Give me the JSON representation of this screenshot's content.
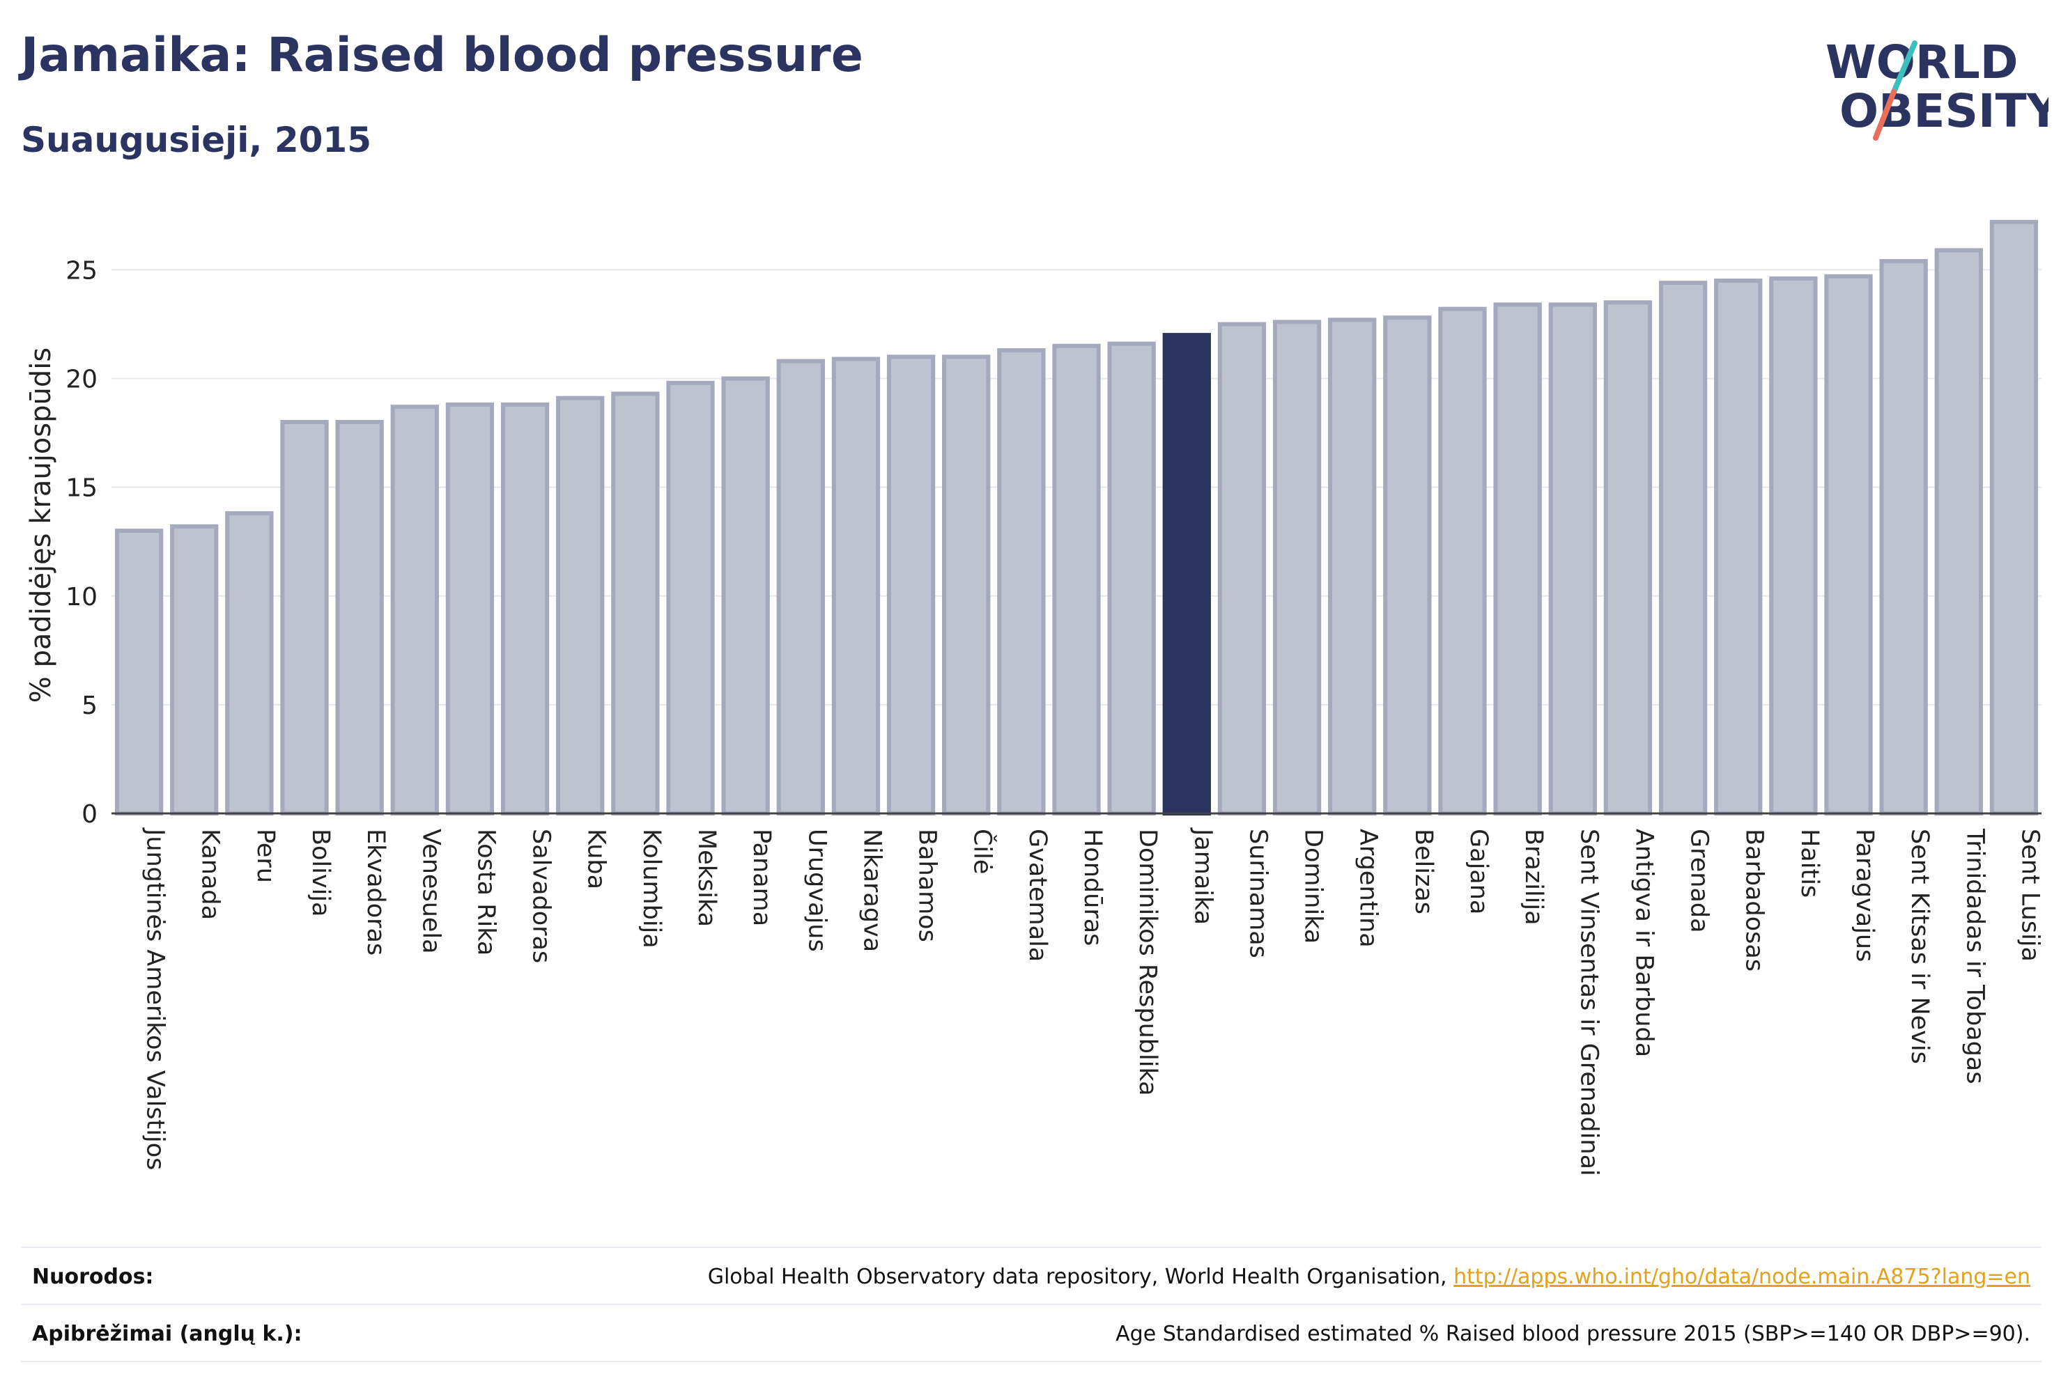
{
  "header": {
    "title": "Jamaika: Raised blood pressure",
    "subtitle": "Suaugusieji, 2015"
  },
  "logo": {
    "line1": "WORLD",
    "line2": "OBESITY"
  },
  "colors": {
    "highlight_bar": "#2b3461",
    "bar_fill": "#bfc2d0",
    "bar_stroke": "#a4a9be",
    "grid": "#e6e8ee",
    "logo_teal": "#3bbfbf",
    "logo_coral": "#e8705a"
  },
  "chart_data": {
    "type": "bar",
    "ylabel": "% padidėjęs kraujospūdis",
    "xlabel": "",
    "ylim": [
      0,
      27.8
    ],
    "yticks": [
      0,
      5,
      10,
      15,
      20,
      25
    ],
    "grid": true,
    "highlight": "Jamaika",
    "categories": [
      "Jungtinės Amerikos Valstijos",
      "Kanada",
      "Peru",
      "Bolivija",
      "Ekvadoras",
      "Venesuela",
      "Kosta Rika",
      "Salvadoras",
      "Kuba",
      "Kolumbija",
      "Meksika",
      "Panama",
      "Urugvajus",
      "Nikaragva",
      "Bahamos",
      "Čilė",
      "Gvatemala",
      "Hondūras",
      "Dominikos Respublika",
      "Jamaika",
      "Surinamas",
      "Dominika",
      "Argentina",
      "Belizas",
      "Gajana",
      "Brazilija",
      "Sent Vinsentas ir Grenadinai",
      "Antigva ir Barbuda",
      "Grenada",
      "Barbadosas",
      "Haitis",
      "Paragvajus",
      "Sent Kitsas ir Nevis",
      "Trinidadas ir Tobagas",
      "Sent Lusija"
    ],
    "values": [
      13.0,
      13.2,
      13.8,
      18.0,
      18.0,
      18.7,
      18.8,
      18.8,
      19.1,
      19.3,
      19.8,
      20.0,
      20.8,
      20.9,
      21.0,
      21.0,
      21.3,
      21.5,
      21.6,
      22.0,
      22.5,
      22.6,
      22.7,
      22.8,
      23.2,
      23.4,
      23.4,
      23.5,
      24.4,
      24.5,
      24.6,
      24.7,
      25.4,
      25.9,
      27.2
    ]
  },
  "footer": {
    "references_label": "Nuorodos:",
    "references_text": "Global Health Observatory data repository, World Health Organisation,",
    "references_link": "http://apps.who.int/gho/data/node.main.A875?lang=en",
    "definitions_label": "Apibrėžimai (anglų k.):",
    "definitions_text": "Age Standardised estimated % Raised blood pressure 2015 (SBP>=140 OR DBP>=90)."
  }
}
